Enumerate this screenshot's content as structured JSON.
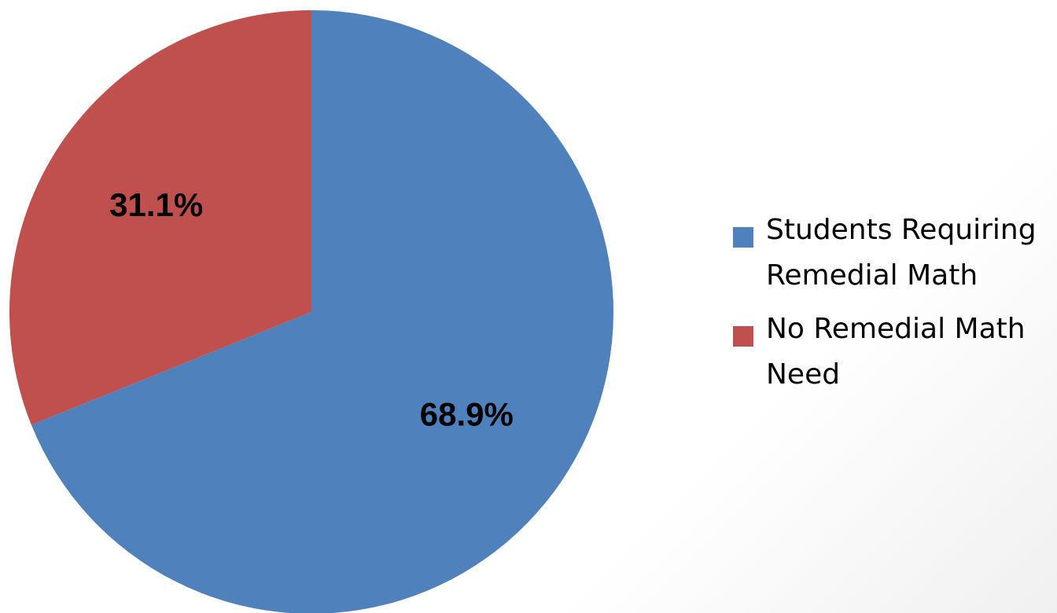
{
  "chart_data": {
    "type": "pie",
    "title": "",
    "categories": [
      "Students Requiring Remedial Math",
      "No Remedial Math Need"
    ],
    "values": [
      68.9,
      31.1
    ],
    "data_labels": [
      "68.9%",
      "31.1%"
    ],
    "colors": [
      "#4F81BD",
      "#C0504D"
    ],
    "start_angle_deg": 0,
    "direction": "clockwise",
    "legend_position": "right"
  },
  "legend": {
    "items": [
      {
        "label": "Students Requiring Remedial Math",
        "color": "#4F81BD"
      },
      {
        "label": "No Remedial Math Need",
        "color": "#C0504D"
      }
    ]
  }
}
